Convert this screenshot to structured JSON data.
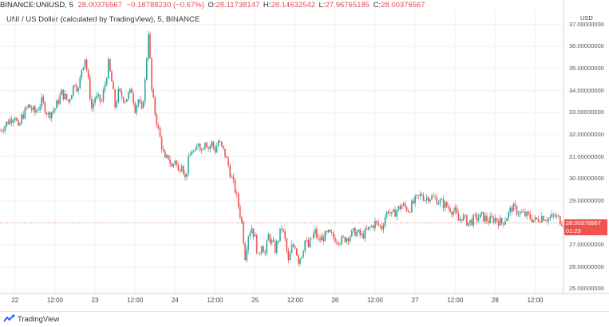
{
  "header": {
    "symbol": "BINANCE:UNIUSD, 5",
    "price_last": "28.00376567",
    "change": "−0.18788230 (−0.67%)",
    "o_label": "O:",
    "o_value": "28.11738147",
    "h_label": "H:",
    "h_value": "28.14632542",
    "l_label": "L:",
    "l_value": "27.96765185",
    "c_label": "C:",
    "c_value": "28.00376567",
    "subtitle": "UNI / US Dollar (calculated by TradingView), 5, BINANCE"
  },
  "axis_currency": "USD",
  "price_tag": {
    "price": "28.00376567",
    "countdown": "01:29"
  },
  "branding": "TradingView",
  "colors": {
    "up": "#26a69a",
    "down": "#ef5350",
    "grid": "#f0f0f0",
    "last_line": "#ef5350"
  },
  "chart_data": {
    "type": "candlestick",
    "title": "UNI / US Dollar (calculated by TradingView), 5, BINANCE",
    "ylabel": "USD",
    "ylim": [
      24.8,
      37.6
    ],
    "y_ticks": [
      "25.00000000",
      "26.00000000",
      "27.00000000",
      "28.00000000",
      "29.00000000",
      "30.00000000",
      "31.00000000",
      "32.00000000",
      "33.00000000",
      "34.00000000",
      "35.00000000",
      "36.00000000",
      "37.00000000"
    ],
    "y_tick_values": [
      25,
      26,
      27,
      28,
      29,
      30,
      31,
      32,
      33,
      34,
      35,
      36,
      37
    ],
    "x_ticks": [
      "22",
      "12:00",
      "23",
      "12:00",
      "24",
      "12:00",
      "25",
      "12:00",
      "26",
      "12:00",
      "27",
      "12:00",
      "28",
      "12:00"
    ],
    "x_tick_hours": [
      0,
      12,
      24,
      36,
      48,
      60,
      72,
      84,
      96,
      108,
      120,
      132,
      144,
      156
    ],
    "x_range_hours": [
      -4.5,
      164.5
    ],
    "last_price": 28.00376567,
    "series": [
      {
        "values": [
          [
            -4.5,
            32.2
          ],
          [
            -2,
            32.6
          ],
          [
            0,
            32.9
          ],
          [
            1,
            32.2
          ],
          [
            2,
            32.8
          ],
          [
            4,
            33.3
          ],
          [
            6,
            33.0
          ],
          [
            8,
            33.5
          ],
          [
            10,
            32.9
          ],
          [
            12,
            33.2
          ],
          [
            14,
            33.9
          ],
          [
            16,
            33.5
          ],
          [
            18,
            34.4
          ],
          [
            19,
            34.0
          ],
          [
            20,
            35.0
          ],
          [
            21,
            35.5
          ],
          [
            22,
            34.4
          ],
          [
            23,
            33.2
          ],
          [
            24,
            33.7
          ],
          [
            26,
            33.5
          ],
          [
            27,
            34.3
          ],
          [
            28,
            35.2
          ],
          [
            29,
            34.4
          ],
          [
            30,
            33.3
          ],
          [
            31,
            33.9
          ],
          [
            33,
            33.6
          ],
          [
            35,
            34.0
          ],
          [
            36,
            33.2
          ],
          [
            37,
            33.6
          ],
          [
            38,
            33.0
          ],
          [
            39,
            34.4
          ],
          [
            40,
            36.7
          ],
          [
            41,
            34.0
          ],
          [
            42,
            33.0
          ],
          [
            43,
            32.2
          ],
          [
            44,
            31.5
          ],
          [
            45,
            30.8
          ],
          [
            46,
            31.0
          ],
          [
            47,
            30.5
          ],
          [
            48,
            30.9
          ],
          [
            49,
            30.3
          ],
          [
            50,
            30.8
          ],
          [
            51,
            30.0
          ],
          [
            52,
            30.8
          ],
          [
            53,
            31.3
          ],
          [
            54,
            31.1
          ],
          [
            55,
            31.7
          ],
          [
            56,
            31.3
          ],
          [
            57,
            31.8
          ],
          [
            58,
            31.4
          ],
          [
            59,
            31.6
          ],
          [
            60,
            31.3
          ],
          [
            61,
            31.7
          ],
          [
            62,
            31.4
          ],
          [
            63,
            31.1
          ],
          [
            64,
            30.6
          ],
          [
            65,
            30.0
          ],
          [
            66,
            29.5
          ],
          [
            67,
            28.8
          ],
          [
            68,
            28.0
          ],
          [
            69,
            26.5
          ],
          [
            70,
            27.5
          ],
          [
            71,
            27.8
          ],
          [
            72,
            27.3
          ],
          [
            73,
            26.4
          ],
          [
            74,
            27.1
          ],
          [
            75,
            26.6
          ],
          [
            76,
            27.4
          ],
          [
            78,
            26.8
          ],
          [
            80,
            27.8
          ],
          [
            81,
            27.2
          ],
          [
            82,
            26.2
          ],
          [
            83,
            26.9
          ],
          [
            84,
            27.0
          ],
          [
            85,
            26.3
          ],
          [
            86,
            26.6
          ],
          [
            87,
            27.2
          ],
          [
            88,
            26.9
          ],
          [
            89,
            27.3
          ],
          [
            90,
            27.6
          ],
          [
            91,
            27.2
          ],
          [
            92,
            27.3
          ],
          [
            94,
            27.5
          ],
          [
            96,
            27.3
          ],
          [
            98,
            27.2
          ],
          [
            100,
            27.4
          ],
          [
            102,
            27.6
          ],
          [
            104,
            27.4
          ],
          [
            106,
            27.7
          ],
          [
            108,
            28.0
          ],
          [
            110,
            27.8
          ],
          [
            111,
            28.3
          ],
          [
            112,
            28.6
          ],
          [
            113,
            28.3
          ],
          [
            114,
            28.5
          ],
          [
            116,
            28.8
          ],
          [
            118,
            28.6
          ],
          [
            120,
            29.0
          ],
          [
            122,
            29.3
          ],
          [
            123,
            29.1
          ],
          [
            124,
            29.2
          ],
          [
            126,
            29.1
          ],
          [
            128,
            28.9
          ],
          [
            130,
            28.7
          ],
          [
            132,
            28.5
          ],
          [
            133,
            28.1
          ],
          [
            134,
            28.3
          ],
          [
            136,
            28.0
          ],
          [
            138,
            28.2
          ],
          [
            140,
            28.3
          ],
          [
            142,
            28.1
          ],
          [
            144,
            28.2
          ],
          [
            146,
            28.0
          ],
          [
            148,
            28.4
          ],
          [
            149,
            28.7
          ],
          [
            150,
            28.6
          ],
          [
            152,
            28.4
          ],
          [
            154,
            28.3
          ],
          [
            156,
            28.1
          ],
          [
            158,
            28.3
          ],
          [
            160,
            28.2
          ],
          [
            162,
            28.3
          ],
          [
            164.5,
            28.0
          ]
        ]
      }
    ]
  }
}
